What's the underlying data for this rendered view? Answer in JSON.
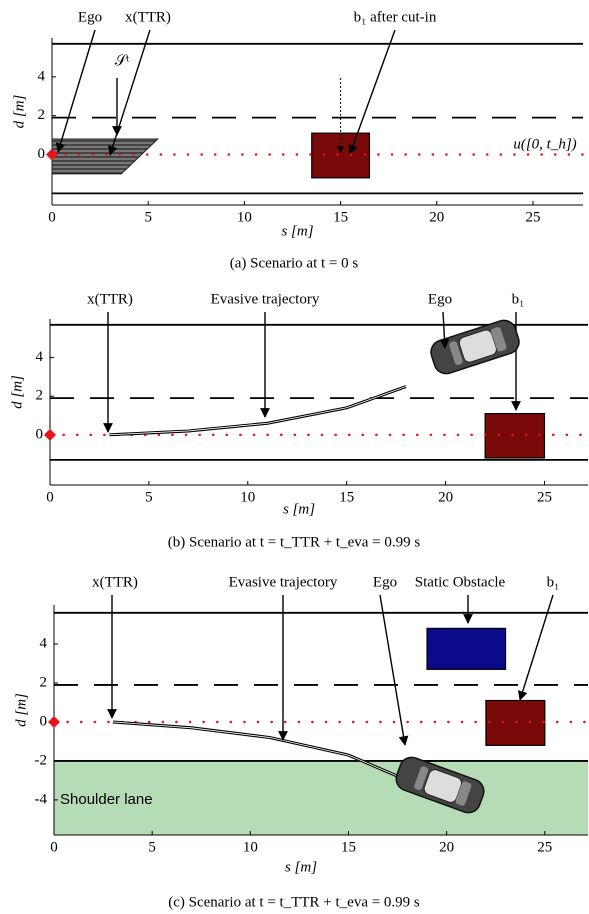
{
  "chart_data": [
    {
      "type": "line",
      "caption": "(a) Scenario at t = 0 s",
      "xlabel": "s [m]",
      "ylabel": "d [m]",
      "xlim": [
        0,
        27.6
      ],
      "ylim": [
        -2.6,
        6
      ],
      "xticks": [
        0,
        5,
        10,
        15,
        20,
        25
      ],
      "yticks": [
        0,
        2,
        4
      ],
      "lane_lines": [
        {
          "d": 5.7,
          "style": "solid"
        },
        {
          "d": 1.9,
          "style": "dashed"
        },
        {
          "d": -2,
          "style": "solid"
        }
      ],
      "reference": {
        "name": "u([0, t_h])",
        "d": 0,
        "color": "#e8141b"
      },
      "reachable_set": {
        "name": "𝒮ᵗ",
        "s": [
          0,
          5.5,
          3.6,
          0
        ],
        "d": [
          0.8,
          0.8,
          -1,
          -1
        ]
      },
      "obstacles": [
        {
          "name": "b₁ after cut-in",
          "s": [
            13.5,
            16.5
          ],
          "d": [
            -1.2,
            1.1
          ],
          "color": "#7a0a0a"
        }
      ],
      "annotations": [
        "Ego",
        "x(TTR)"
      ]
    },
    {
      "type": "line",
      "caption": "(b) Scenario at t = t_TTR + t_eva = 0.99 s",
      "xlabel": "s [m]",
      "ylabel": "d [m]",
      "xlim": [
        0,
        27.2
      ],
      "ylim": [
        -2.6,
        6
      ],
      "xticks": [
        0,
        5,
        10,
        15,
        20,
        25
      ],
      "yticks": [
        0,
        2,
        4
      ],
      "lane_lines": [
        {
          "d": 5.7,
          "style": "solid"
        },
        {
          "d": 1.9,
          "style": "dashed"
        },
        {
          "d": -1.3,
          "style": "solid"
        }
      ],
      "reference": {
        "d": 0,
        "color": "#e8141b"
      },
      "trajectory": {
        "name": "Evasive trajectory",
        "s": [
          3,
          7,
          11,
          15,
          18
        ],
        "d": [
          0,
          0.2,
          0.6,
          1.4,
          2.5
        ]
      },
      "obstacles": [
        {
          "name": "b₁",
          "s": [
            22,
            25
          ],
          "d": [
            -1.2,
            1.1
          ],
          "color": "#7a0a0a"
        }
      ],
      "annotations": [
        "x(TTR)",
        "Ego"
      ]
    },
    {
      "type": "line",
      "caption": "(c) Scenario at t = t_TTR + t_eva = 0.99 s",
      "xlabel": "s [m]",
      "ylabel": "d [m]",
      "xlim": [
        0,
        27.2
      ],
      "ylim": [
        -5.8,
        6
      ],
      "xticks": [
        0,
        5,
        10,
        15,
        20,
        25
      ],
      "yticks": [
        -4,
        -2,
        0,
        2,
        4
      ],
      "lane_lines": [
        {
          "d": 5.6,
          "style": "solid"
        },
        {
          "d": 1.9,
          "style": "dashed"
        },
        {
          "d": -2,
          "style": "solid"
        }
      ],
      "shoulder": {
        "name": "Shoulder lane",
        "d": [
          -2,
          -5.8
        ],
        "color": "#b5dcb5"
      },
      "reference": {
        "d": 0,
        "color": "#e8141b"
      },
      "trajectory": {
        "name": "Evasive trajectory",
        "s": [
          3,
          7,
          11,
          15,
          18
        ],
        "d": [
          0,
          -0.3,
          -0.8,
          -1.7,
          -3
        ]
      },
      "obstacles": [
        {
          "name": "Static Obstacle",
          "s": [
            19,
            23
          ],
          "d": [
            2.7,
            4.8
          ],
          "color": "#0a0a8a"
        },
        {
          "name": "b₁",
          "s": [
            22,
            25
          ],
          "d": [
            -1.2,
            1.1
          ],
          "color": "#7a0a0a"
        }
      ],
      "annotations": [
        "x(TTR)",
        "Ego"
      ]
    }
  ]
}
